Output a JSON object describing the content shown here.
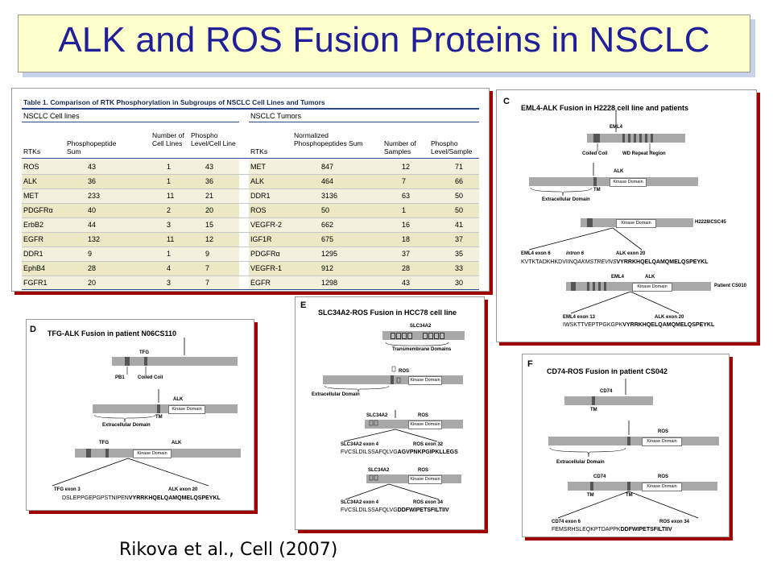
{
  "slide": {
    "title": "ALK and ROS Fusion Proteins in NSCLC",
    "citation": "Rikova et al., Cell (2007)"
  },
  "table": {
    "caption": "Table 1.  Comparison of RTK Phosphorylation in Subgroups of NSCLC Cell Lines and Tumors",
    "left_group": "NSCLC Cell lines",
    "right_group": "NSCLC Tumors",
    "left_headers": [
      "RTKs",
      "Phosphopeptide Sum",
      "Number of Cell Lines",
      "Phospho Level/Cell Line"
    ],
    "right_headers": [
      "RTKs",
      "Normalized Phosphopeptides Sum",
      "Number of Samples",
      "Phospho Level/Sample"
    ],
    "rows": [
      {
        "l": [
          "ROS",
          "43",
          "1",
          "43"
        ],
        "r": [
          "MET",
          "847",
          "12",
          "71"
        ]
      },
      {
        "l": [
          "ALK",
          "36",
          "1",
          "36"
        ],
        "r": [
          "ALK",
          "464",
          "7",
          "66"
        ]
      },
      {
        "l": [
          "MET",
          "233",
          "11",
          "21"
        ],
        "r": [
          "DDR1",
          "3136",
          "63",
          "50"
        ]
      },
      {
        "l": [
          "PDGFRα",
          "40",
          "2",
          "20"
        ],
        "r": [
          "ROS",
          "50",
          "1",
          "50"
        ]
      },
      {
        "l": [
          "ErbB2",
          "44",
          "3",
          "15"
        ],
        "r": [
          "VEGFR-2",
          "662",
          "16",
          "41"
        ]
      },
      {
        "l": [
          "EGFR",
          "132",
          "11",
          "12"
        ],
        "r": [
          "IGF1R",
          "675",
          "18",
          "37"
        ]
      },
      {
        "l": [
          "DDR1",
          "9",
          "1",
          "9"
        ],
        "r": [
          "PDGFRα",
          "1295",
          "37",
          "35"
        ]
      },
      {
        "l": [
          "EphB4",
          "28",
          "4",
          "7"
        ],
        "r": [
          "VEGFR-1",
          "912",
          "28",
          "33"
        ]
      },
      {
        "l": [
          "FGFR1",
          "20",
          "3",
          "7"
        ],
        "r": [
          "EGFR",
          "1298",
          "43",
          "30"
        ]
      }
    ]
  },
  "panel_c": {
    "label": "C",
    "title": "EML4-ALK Fusion in H2228 cell line and patients",
    "eml4": "EML4",
    "coiled_coil": "Coiled Coil",
    "wd_repeat": "WD Repeat Region",
    "tm": "TM",
    "alk": "ALK",
    "kinase_domain": "Kinase Domain",
    "extracellular": "Extracellular Domain",
    "cell_line": "H2228/CSC45",
    "exon6": "EML4 exon 6",
    "intron6": "intron 6",
    "alk_exon20": "ALK exon 20",
    "seq1_a": "KVTKTADKHKDVIINQ",
    "seq1_i": "AKMSTREVNS",
    "seq1_b": "VYRRKHQELQAMQMELQSPEYKL",
    "patient": "Patient CS010",
    "exon13": "EML4 exon 13",
    "seq2_a": "IWSKTTVEPTPGKGPK",
    "seq2_b": "VYRRKHQELQAMQMELQSPEYKL"
  },
  "panel_d": {
    "label": "D",
    "title": "TFG-ALK Fusion in patient N06CS110",
    "tfg": "TFG",
    "pb1": "PB1",
    "coiled_coil": "Coiled Coil",
    "alk": "ALK",
    "kinase_domain": "Kinase Domain",
    "tm": "TM",
    "extracellular": "Extracellular Domain",
    "exon3": "TFG exon 3",
    "alk_exon20": "ALK exon 20",
    "seq_a": "DSLEPPGEPGPSTNIPEN",
    "seq_b": "VYRRKHQELQAMQMELQSPEYKL"
  },
  "panel_e": {
    "label": "E",
    "title": "SLC34A2-ROS Fusion in HCC78 cell line",
    "slc": "SLC34A2",
    "transmembrane": "Transmembrane Domains",
    "ros": "ROS",
    "kinase_domain": "Kinase Domain",
    "extracellular": "Extracellular Domain",
    "exon4": "SLC34A2 exon 4",
    "ros_exon32": "ROS exon 32",
    "seq1_a": "FVCSLDILSSAFQLVG",
    "seq1_b": "AGVPNKPGIPKLLEGS",
    "ros_exon34": "ROS exon 34",
    "seq2_a": "FVCSLDILSSAFQLVG",
    "seq2_b": "DDFWIPETSFILTIIV"
  },
  "panel_f": {
    "label": "F",
    "title": "CD74-ROS Fusion in patient CS042",
    "cd74": "CD74",
    "tm": "TM",
    "ros": "ROS",
    "kinase_domain": "Kinase Domain",
    "extracellular": "Extracellular Domain",
    "exon6": "CD74 exon 6",
    "ros_exon34": "ROS exon 34",
    "seq_a": "FEMSRHSLEQKPTDAPPK",
    "seq_b": "DDFWIPETSFILTIIV"
  }
}
